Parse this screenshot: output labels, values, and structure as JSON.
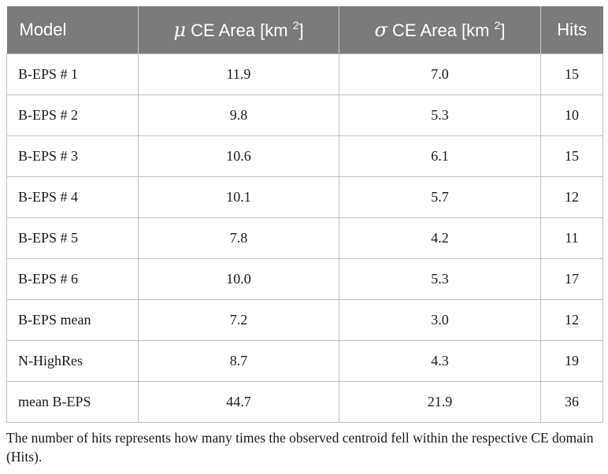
{
  "table": {
    "headers": {
      "model": "Model",
      "mu_symbol": "μ",
      "mu_text": "CE Area [km ",
      "mu_sup": "2",
      "mu_close": "]",
      "sigma_symbol": "σ",
      "sigma_text": "CE Area [km ",
      "sigma_sup": "2",
      "sigma_close": "]",
      "hits": "Hits"
    },
    "rows": [
      {
        "model": "B-EPS # 1",
        "mu": "11.9",
        "sigma": "7.0",
        "hits": "15"
      },
      {
        "model": "B-EPS # 2",
        "mu": "9.8",
        "sigma": "5.3",
        "hits": "10"
      },
      {
        "model": "B-EPS # 3",
        "mu": "10.6",
        "sigma": "6.1",
        "hits": "15"
      },
      {
        "model": "B-EPS # 4",
        "mu": "10.1",
        "sigma": "5.7",
        "hits": "12"
      },
      {
        "model": "B-EPS # 5",
        "mu": "7.8",
        "sigma": "4.2",
        "hits": "11"
      },
      {
        "model": "B-EPS # 6",
        "mu": "10.0",
        "sigma": "5.3",
        "hits": "17"
      },
      {
        "model": "B-EPS mean",
        "mu": "7.2",
        "sigma": "3.0",
        "hits": "12"
      },
      {
        "model": "N-HighRes",
        "mu": "8.7",
        "sigma": "4.3",
        "hits": "19"
      },
      {
        "model": "mean B-EPS",
        "mu": "44.7",
        "sigma": "21.9",
        "hits": "36"
      }
    ]
  },
  "footnote": "The number of hits represents how many times the observed centroid fell within the respective CE domain (Hits).",
  "colors": {
    "header_bg": "#7b7b7b",
    "header_text": "#ffffff",
    "grid": "#c2c2c2"
  }
}
